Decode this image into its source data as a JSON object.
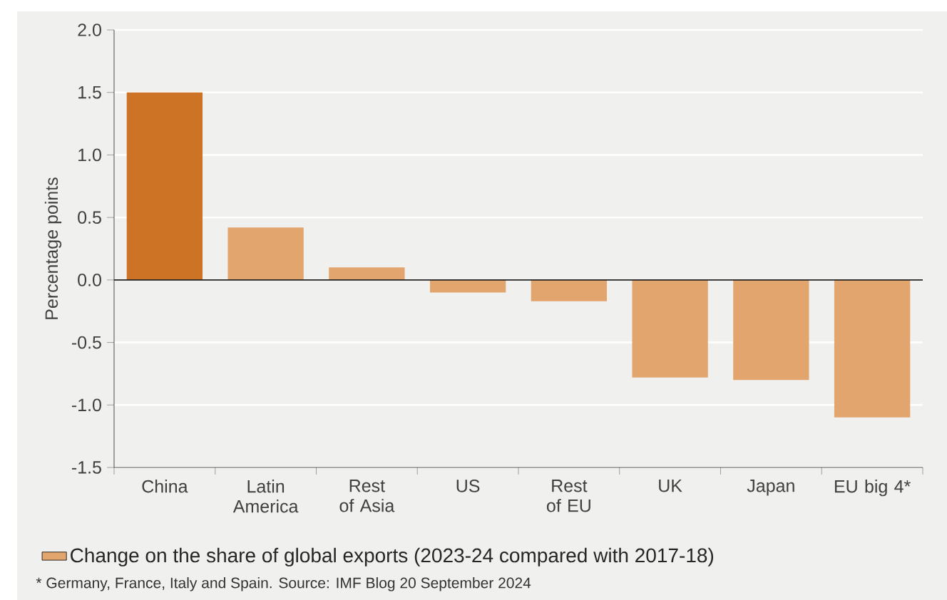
{
  "chart_data": {
    "type": "bar",
    "ylabel": "Percentage points",
    "categories": [
      "China",
      "Latin America",
      "Rest of Asia",
      "US",
      "Rest of EU",
      "UK",
      "Japan",
      "EU big 4*"
    ],
    "series": [
      {
        "name": "Change on the share of global exports (2023-24 compared with 2017-18)",
        "color": "#e2a56e",
        "colors": [
          "#cc7326",
          "#e2a56e",
          "#e2a56e",
          "#e2a56e",
          "#e2a56e",
          "#e2a56e",
          "#e2a56e",
          "#e2a56e"
        ],
        "values": [
          1.5,
          0.42,
          0.1,
          -0.1,
          -0.17,
          -0.78,
          -0.8,
          -1.1
        ]
      }
    ],
    "ylim": [
      -1.5,
      2.0
    ],
    "yticks": [
      {
        "value": -1.5,
        "label": "-1.5"
      },
      {
        "value": -1.0,
        "label": "-1.0"
      },
      {
        "value": -0.5,
        "label": "-0.5"
      },
      {
        "value": 0.0,
        "label": "0.0"
      },
      {
        "value": 0.5,
        "label": "0.5"
      },
      {
        "value": 1.0,
        "label": "1.0"
      },
      {
        "value": 1.5,
        "label": "1.5"
      },
      {
        "value": 2.0,
        "label": "2.0"
      }
    ],
    "grid": "y",
    "ref_lines": [
      {
        "axis": "y",
        "value": 0,
        "color": "#222222"
      }
    ],
    "legend": "bottom",
    "annotations": [
      "* Germany, France, Italy and Spain. Source: IMF Blog 20 September 2024"
    ]
  }
}
